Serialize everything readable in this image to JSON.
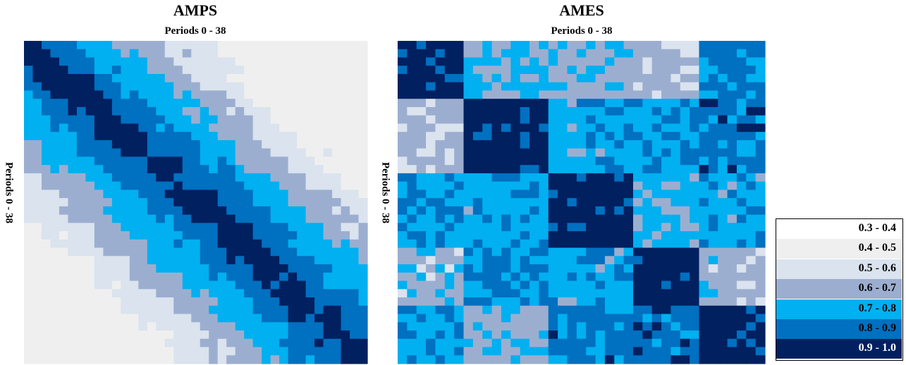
{
  "chart_data": [
    {
      "type": "heatmap",
      "title": "AMPS",
      "xlabel": "Periods 0 - 38",
      "ylabel": "Periods 0 - 38",
      "n": 39,
      "pattern": "amps"
    },
    {
      "type": "heatmap",
      "title": "AMES",
      "xlabel": "Periods 0 - 38",
      "ylabel": "Periods 0 - 38",
      "n": 39,
      "pattern": "ames"
    }
  ],
  "legend": {
    "entries": [
      {
        "label": "0.3 - 0.4",
        "color": "#ffffff"
      },
      {
        "label": "0.4 - 0.5",
        "color": "#efefef"
      },
      {
        "label": "0.5 - 0.6",
        "color": "#dae3ee"
      },
      {
        "label": "0.6 - 0.7",
        "color": "#9caed0"
      },
      {
        "label": "0.7 - 0.8",
        "color": "#00b0f0"
      },
      {
        "label": "0.8 - 0.9",
        "color": "#0070c0"
      },
      {
        "label": "0.9 - 1.0",
        "color": "#002060"
      }
    ]
  }
}
